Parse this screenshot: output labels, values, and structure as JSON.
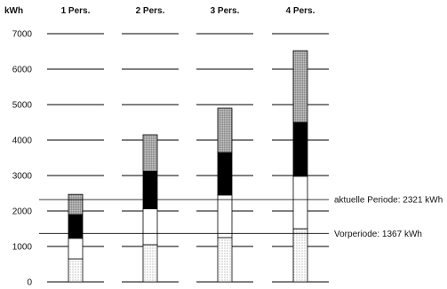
{
  "chart_data": {
    "type": "bar",
    "stacked": true,
    "unit_label": "kWh",
    "categories": [
      "1 Pers.",
      "2 Pers.",
      "3 Pers.",
      "4 Pers."
    ],
    "ylim": [
      0,
      7000
    ],
    "yticks": [
      0,
      1000,
      2000,
      3000,
      4000,
      5000,
      6000,
      7000
    ],
    "segment_boundaries": [
      [
        650,
        1230,
        1900,
        2470
      ],
      [
        1050,
        2060,
        3120,
        4150
      ],
      [
        1250,
        2450,
        3650,
        4900
      ],
      [
        1500,
        2980,
        4500,
        6520
      ]
    ],
    "segment_styles": [
      "dotted",
      "white",
      "black",
      "gray-stipple"
    ],
    "reference_lines": [
      {
        "label": "aktuelle Periode: 2321 kWh",
        "value": 2321
      },
      {
        "label": "Vorperiode: 1367 kWh",
        "value": 1367
      }
    ]
  }
}
